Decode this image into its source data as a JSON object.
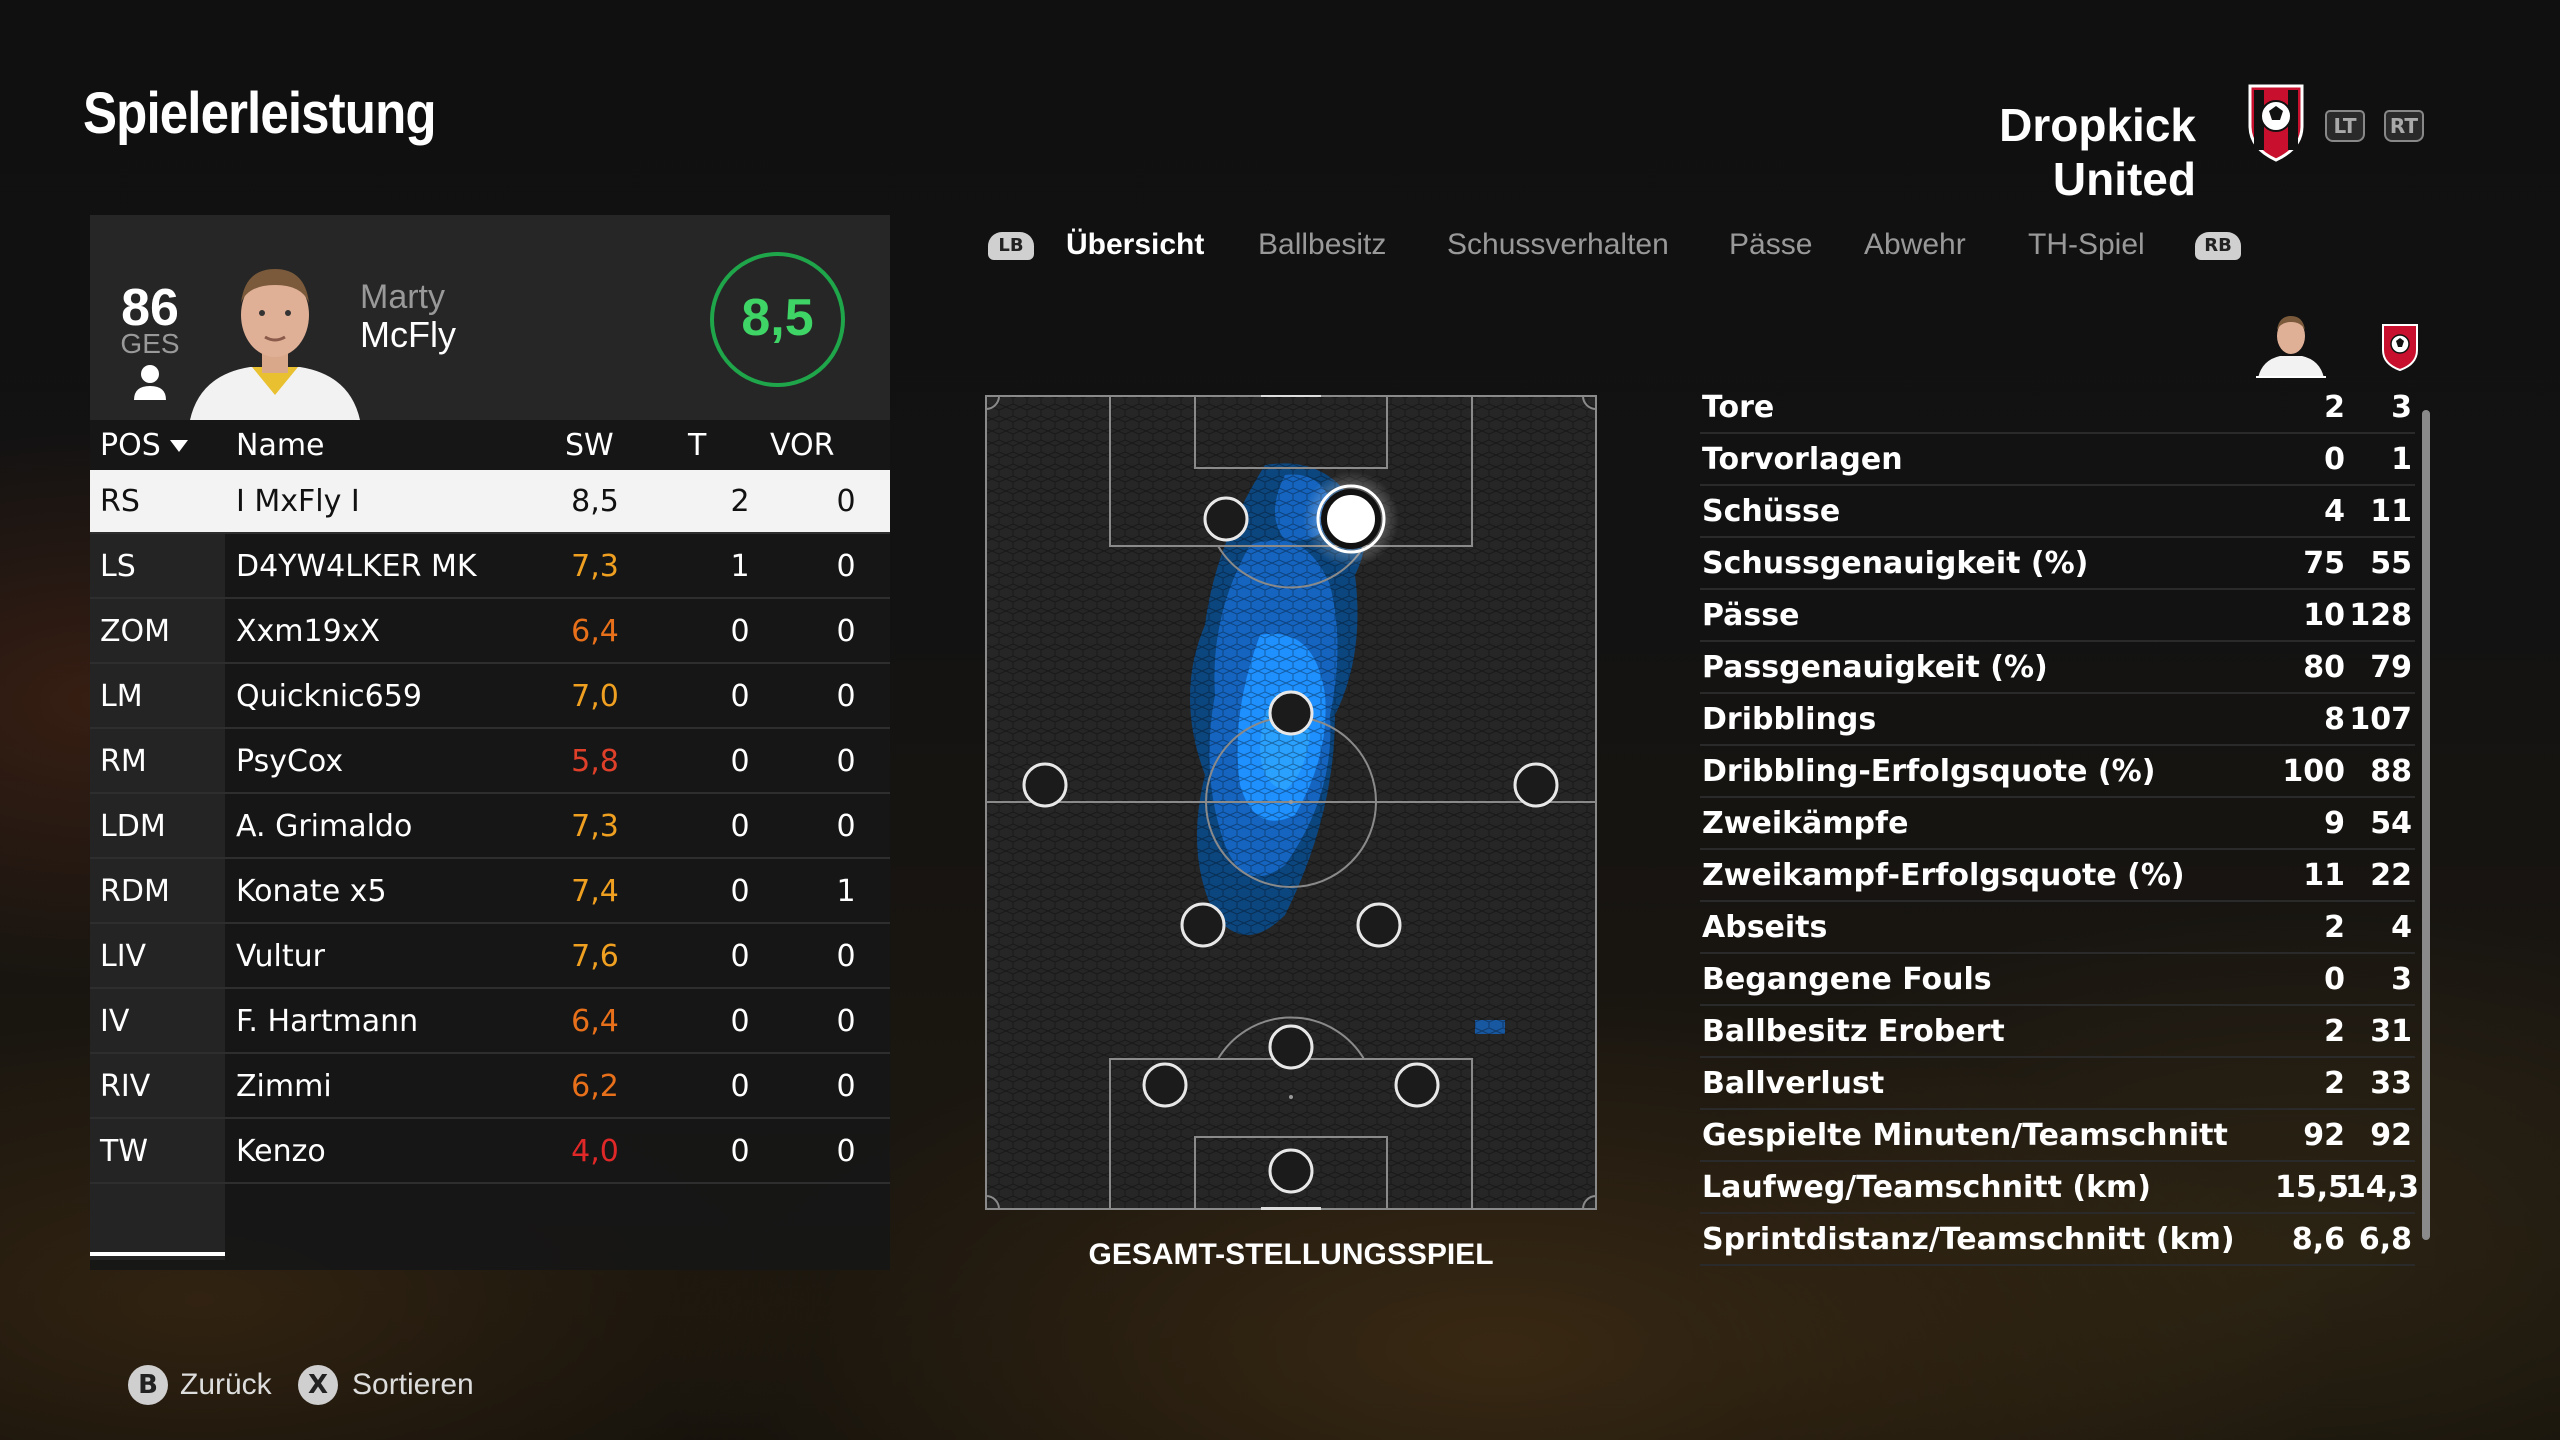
{
  "header": {
    "title": "Spielerleistung",
    "team_name": "Dropkick United",
    "trigger_left": "LT",
    "trigger_right": "RT"
  },
  "player": {
    "overall": "86",
    "overall_label": "GES",
    "first_name": "Marty",
    "last_name": "McFly",
    "match_rating": "8,5"
  },
  "table": {
    "headers": {
      "pos": "POS",
      "name": "Name",
      "sw": "SW",
      "t": "T",
      "vor": "VOR"
    },
    "rows": [
      {
        "pos": "RS",
        "name": "I MxFly I",
        "sw": "8,5",
        "t": "2",
        "vor": "0",
        "sw_color": "#111111"
      },
      {
        "pos": "LS",
        "name": "D4YW4LKER MK",
        "sw": "7,3",
        "t": "1",
        "vor": "0",
        "sw_color": "#f0a020"
      },
      {
        "pos": "ZOM",
        "name": "Xxm19xX",
        "sw": "6,4",
        "t": "0",
        "vor": "0",
        "sw_color": "#e8701a"
      },
      {
        "pos": "LM",
        "name": "Quicknic659",
        "sw": "7,0",
        "t": "0",
        "vor": "0",
        "sw_color": "#f0a020"
      },
      {
        "pos": "RM",
        "name": "PsyCox",
        "sw": "5,8",
        "t": "0",
        "vor": "0",
        "sw_color": "#e0402a"
      },
      {
        "pos": "LDM",
        "name": "A. Grimaldo",
        "sw": "7,3",
        "t": "0",
        "vor": "0",
        "sw_color": "#f0a020"
      },
      {
        "pos": "RDM",
        "name": "Konate x5",
        "sw": "7,4",
        "t": "0",
        "vor": "1",
        "sw_color": "#f0a020"
      },
      {
        "pos": "LIV",
        "name": "Vultur",
        "sw": "7,6",
        "t": "0",
        "vor": "0",
        "sw_color": "#f0a020"
      },
      {
        "pos": "IV",
        "name": "F. Hartmann",
        "sw": "6,4",
        "t": "0",
        "vor": "0",
        "sw_color": "#e8701a"
      },
      {
        "pos": "RIV",
        "name": "Zimmi",
        "sw": "6,2",
        "t": "0",
        "vor": "0",
        "sw_color": "#e8701a"
      },
      {
        "pos": "TW",
        "name": "Kenzo",
        "sw": "4,0",
        "t": "0",
        "vor": "0",
        "sw_color": "#e02828"
      }
    ]
  },
  "tabs": {
    "bumper_left": "LB",
    "bumper_right": "RB",
    "items": [
      "Übersicht",
      "Ballbesitz",
      "Schussverhalten",
      "Pässe",
      "Abwehr",
      "TH-Spiel"
    ]
  },
  "pitch": {
    "caption": "GESAMT-STELLUNGSSPIEL"
  },
  "stats": {
    "rows": [
      {
        "label": "Tore",
        "player": "2",
        "team": "3"
      },
      {
        "label": "Torvorlagen",
        "player": "0",
        "team": "1"
      },
      {
        "label": "Schüsse",
        "player": "4",
        "team": "11"
      },
      {
        "label": "Schussgenauigkeit (%)",
        "player": "75",
        "team": "55"
      },
      {
        "label": "Pässe",
        "player": "10",
        "team": "128"
      },
      {
        "label": "Passgenauigkeit (%)",
        "player": "80",
        "team": "79"
      },
      {
        "label": "Dribblings",
        "player": "8",
        "team": "107"
      },
      {
        "label": "Dribbling-Erfolgsquote (%)",
        "player": "100",
        "team": "88"
      },
      {
        "label": "Zweikämpfe",
        "player": "9",
        "team": "54"
      },
      {
        "label": "Zweikampf-Erfolgsquote (%)",
        "player": "11",
        "team": "22"
      },
      {
        "label": "Abseits",
        "player": "2",
        "team": "4"
      },
      {
        "label": "Begangene Fouls",
        "player": "0",
        "team": "3"
      },
      {
        "label": "Ballbesitz Erobert",
        "player": "2",
        "team": "31"
      },
      {
        "label": "Ballverlust",
        "player": "2",
        "team": "33"
      },
      {
        "label": "Gespielte Minuten/Teamschnitt",
        "player": "92",
        "team": "92"
      },
      {
        "label": "Laufweg/Teamschnitt (km)",
        "player": "15,5",
        "team": "14,3"
      },
      {
        "label": "Sprintdistanz/Teamschnitt (km)",
        "player": "8,6",
        "team": "6,8"
      }
    ]
  },
  "footer": {
    "back_glyph": "B",
    "back_label": "Zurück",
    "sort_glyph": "X",
    "sort_label": "Sortieren"
  },
  "colors": {
    "accent_green": "#1fa64a",
    "heatmap_blue": "#1e90ff",
    "crest_red": "#c8102e"
  }
}
